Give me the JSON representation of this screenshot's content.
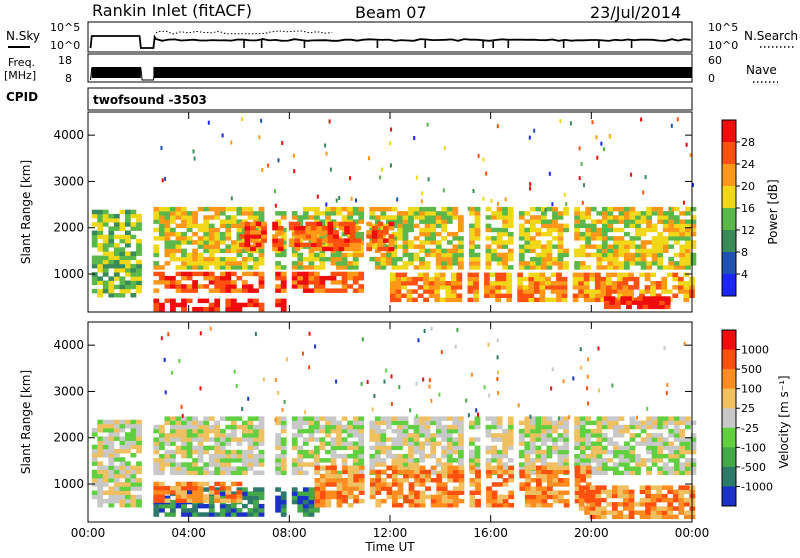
{
  "header": {
    "station": "Rankin Inlet (fitACF)",
    "beam": "Beam 07",
    "date": "23/Jul/2014"
  },
  "chart_data": [
    {
      "type": "line",
      "panel": "noise",
      "left_label": "N.Sky",
      "right_label": "N.Search",
      "left_ticks": [
        "10^5",
        "10^0"
      ],
      "right_ticks": [
        "10^5",
        "10^0"
      ]
    },
    {
      "type": "line",
      "panel": "frequency",
      "left_label": "Freq.",
      "left_unit": "[MHz]",
      "left_ticks": [
        "18",
        "8"
      ],
      "right_label": "Nave",
      "right_ticks": [
        "60",
        "0"
      ]
    },
    {
      "type": "table",
      "panel": "cpid",
      "label": "CPID",
      "value": "twofsound -3503"
    },
    {
      "type": "heatmap",
      "panel": "power",
      "ylabel": "Slant Range [km]",
      "y_ticks": [
        "1000",
        "2000",
        "3000",
        "4000"
      ],
      "ylim": [
        180,
        4500
      ],
      "colorbar_label": "Power [dB]",
      "colorbar_ticks": [
        "4",
        "8",
        "12",
        "16",
        "20",
        "24",
        "28"
      ],
      "colors": [
        "#1a25ff",
        "#2050b0",
        "#3a8a5a",
        "#5ab84a",
        "#f0d818",
        "#ff9818",
        "#ff5010",
        "#ee0c0c"
      ],
      "bands": [
        {
          "t0": 0.15,
          "t1": 2.1,
          "r0": 500,
          "r1": 2350,
          "level": 3
        },
        {
          "t0": 2.6,
          "t1": 24,
          "r0": 1100,
          "r1": 2400,
          "level": 4
        },
        {
          "t0": 2.6,
          "t1": 11,
          "r0": 600,
          "r1": 1000,
          "level": 6
        },
        {
          "t0": 2.6,
          "t1": 8,
          "r0": 200,
          "r1": 400,
          "level": 7
        },
        {
          "t0": 6,
          "t1": 12,
          "r0": 1500,
          "r1": 2100,
          "level": 6
        },
        {
          "t0": 12,
          "t1": 24,
          "r0": 400,
          "r1": 1000,
          "level": 5
        },
        {
          "t0": 20.5,
          "t1": 23,
          "r0": 250,
          "r1": 500,
          "level": 7
        }
      ]
    },
    {
      "type": "heatmap",
      "panel": "velocity",
      "xlabel": "Time UT",
      "ylabel": "Slant Range [km]",
      "y_ticks": [
        "1000",
        "2000",
        "3000",
        "4000"
      ],
      "x_ticks": [
        "00:00",
        "04:00",
        "08:00",
        "12:00",
        "16:00",
        "20:00",
        "00:00"
      ],
      "ylim": [
        180,
        4500
      ],
      "colorbar_label": "Velocity [m s⁻¹]",
      "colorbar_ticks": [
        "1000",
        "500",
        "100",
        "25",
        "-25",
        "-100",
        "-500",
        "-1000"
      ],
      "colors": [
        "#1a30c8",
        "#2e7a6a",
        "#44a848",
        "#60d040",
        "#c8c8c8",
        "#f0c060",
        "#ff8c1e",
        "#ff5010",
        "#ee0c0c"
      ],
      "bands": [
        {
          "t0": 0.15,
          "t1": 2.1,
          "r0": 500,
          "r1": 2350,
          "level": 4
        },
        {
          "t0": 2.6,
          "t1": 24,
          "r0": 1200,
          "r1": 2400,
          "level": 4
        },
        {
          "t0": 2.6,
          "t1": 9,
          "r0": 300,
          "r1": 900,
          "level": 1
        },
        {
          "t0": 2.6,
          "t1": 6,
          "r0": 600,
          "r1": 1000,
          "level": 6
        },
        {
          "t0": 9,
          "t1": 20,
          "r0": 500,
          "r1": 1400,
          "level": 6
        },
        {
          "t0": 19.5,
          "t1": 24,
          "r0": 250,
          "r1": 900,
          "level": 6
        }
      ]
    }
  ]
}
